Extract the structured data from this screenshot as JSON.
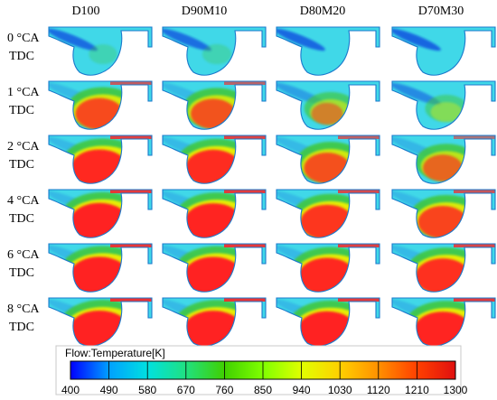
{
  "columns": [
    {
      "label": "D100"
    },
    {
      "label": "D90M10"
    },
    {
      "label": "D80M20"
    },
    {
      "label": "D70M30"
    }
  ],
  "rows": [
    {
      "angle": "0 °CA",
      "ref": "TDC"
    },
    {
      "angle": "1 °CA",
      "ref": "TDC"
    },
    {
      "angle": "2 °CA",
      "ref": "TDC"
    },
    {
      "angle": "4 °CA",
      "ref": "TDC"
    },
    {
      "angle": "6 °CA",
      "ref": "TDC"
    },
    {
      "angle": "8 °CA",
      "ref": "TDC"
    }
  ],
  "intensity": [
    [
      0.05,
      0.06,
      0.02,
      0.0
    ],
    [
      0.75,
      0.7,
      0.45,
      0.28
    ],
    [
      0.92,
      0.9,
      0.72,
      0.6
    ],
    [
      0.96,
      0.94,
      0.85,
      0.78
    ],
    [
      0.98,
      0.97,
      0.92,
      0.88
    ],
    [
      1.0,
      0.99,
      0.96,
      0.94
    ]
  ],
  "legend": {
    "title": "Flow:Temperature[K]",
    "ticks": [
      "400",
      "490",
      "580",
      "670",
      "760",
      "850",
      "940",
      "1030",
      "1120",
      "1210",
      "1300"
    ],
    "colors": [
      "#0000ff",
      "#00a0ff",
      "#00e0e0",
      "#20e080",
      "#40d000",
      "#80ff00",
      "#e0ff00",
      "#ffd000",
      "#ff9000",
      "#ff4000",
      "#e01010"
    ]
  },
  "palette": {
    "cold_blue": "#1860e0",
    "chamber_cyan": "#40d8e8",
    "mid_green": "#40c840",
    "hot_yellow": "#f0f000",
    "flame_red": "#ff2020",
    "wall_outline": "#1a7acc"
  }
}
